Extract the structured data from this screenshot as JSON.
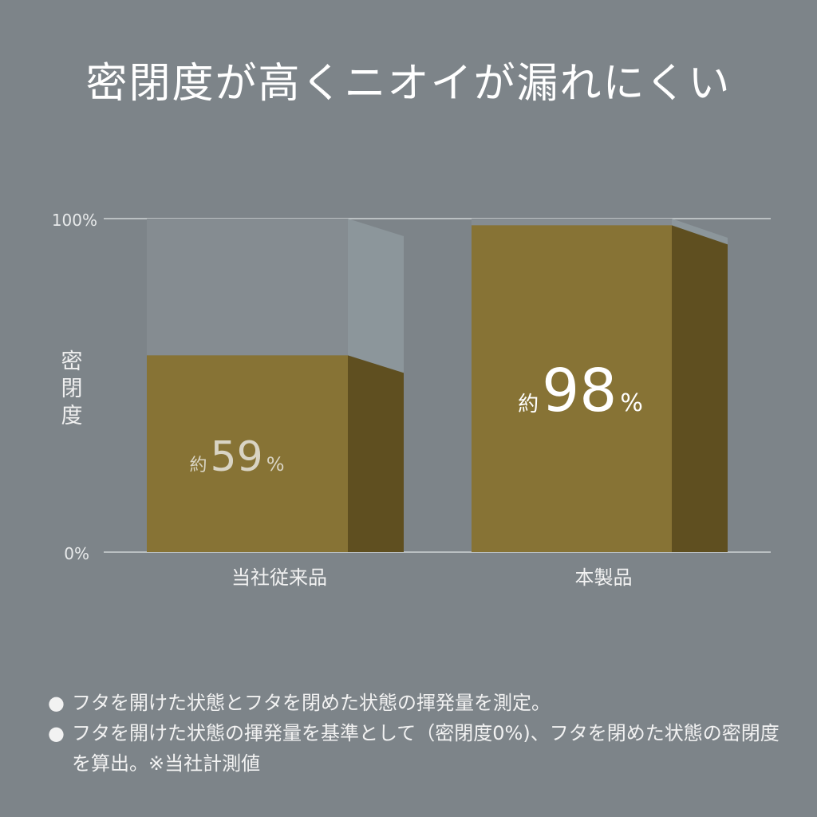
{
  "title": "密閉度が高くニオイが漏れにくい",
  "chart_data": {
    "type": "bar",
    "ylabel": "密閉度",
    "ylim": [
      0,
      100
    ],
    "yticks": [
      "0%",
      "100%"
    ],
    "categories": [
      "当社従来品",
      "本製品"
    ],
    "values": [
      59,
      98
    ],
    "value_labels": [
      {
        "prefix": "約",
        "number": "59",
        "unit": "%"
      },
      {
        "prefix": "約",
        "number": "98",
        "unit": "%"
      }
    ],
    "colors": {
      "bar_front": "#877335",
      "bar_side": "#5f4f20",
      "empty_front": "#858c91",
      "empty_side": "#8c969b",
      "gridline": "#cfd3d6"
    }
  },
  "notes": [
    "フタを開けた状態とフタを閉めた状態の揮発量を測定。",
    "フタを開けた状態の揮発量を基準として（密閉度0%)、フタを閉めた状態の密閉度を算出。※当社計測値"
  ],
  "bullet": "●"
}
